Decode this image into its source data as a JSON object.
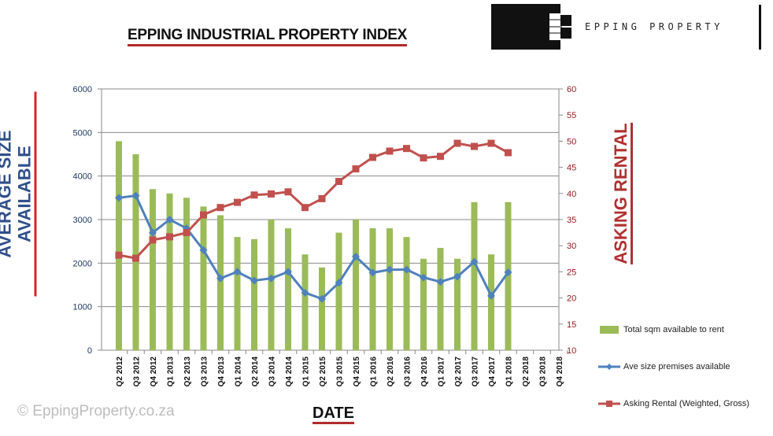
{
  "header": {
    "title": "EPPING INDUSTRIAL PROPERTY INDEX",
    "brand": "EPPING PROPERTY"
  },
  "watermark": "© EppingProperty.co.za",
  "colors": {
    "bars": "#9bbb59",
    "ave_size": "#4f81bd",
    "rental": "#c0504d",
    "left_axis_text": "#1f3864",
    "right_axis_text": "#8b1a1a"
  },
  "chart_data": {
    "type": "bar+line",
    "title": "EPPING INDUSTRIAL PROPERTY INDEX",
    "xlabel": "DATE",
    "ylabel": "AVERAGE  SIZE AVAILABLE",
    "y2label": "ASKING RENTAL",
    "ylim": [
      0,
      6000
    ],
    "y2lim": [
      10,
      60
    ],
    "yticks": [
      "0",
      "1000",
      "2000",
      "3000",
      "4000",
      "5000",
      "6000"
    ],
    "y2ticks": [
      "10",
      "15",
      "20",
      "25",
      "30",
      "35",
      "40",
      "45",
      "50",
      "55",
      "60"
    ],
    "grid": true,
    "legend_position": "right",
    "categories": [
      "Q2 2012",
      "Q3 2012",
      "Q4 2012",
      "Q1 2013",
      "Q2 2013",
      "Q3 2013",
      "Q4 2013",
      "Q1 2014",
      "Q2 2014",
      "Q3 2014",
      "Q4 2014",
      "Q1 2015",
      "Q2 2015",
      "Q3 2015",
      "Q4 2015",
      "Q1 2016",
      "Q2 2016",
      "Q3 2016",
      "Q4 2016",
      "Q1 2017",
      "Q2 2017",
      "Q3 2017",
      "Q4 2017",
      "Q1 2018",
      "Q2 2018",
      "Q3 2018",
      "Q4 2018"
    ],
    "series": [
      {
        "name": "Total sqm available to rent",
        "type": "bar",
        "axis": "left",
        "values": [
          4800,
          4500,
          3700,
          3600,
          3500,
          3300,
          3100,
          2600,
          2550,
          3000,
          2800,
          2200,
          1900,
          2700,
          3000,
          2800,
          2800,
          2600,
          2100,
          2350,
          2100,
          3400,
          2200,
          3400,
          null,
          null,
          null
        ]
      },
      {
        "name": "Ave size premises available",
        "type": "line",
        "axis": "left",
        "values": [
          3500,
          3550,
          2700,
          3000,
          2800,
          2300,
          1650,
          1800,
          1600,
          1650,
          1800,
          1320,
          1180,
          1550,
          2150,
          1780,
          1850,
          1850,
          1670,
          1570,
          1690,
          2030,
          1250,
          1790,
          null,
          null,
          null
        ]
      },
      {
        "name": "Asking Rental (Weighted, Gross)",
        "type": "line",
        "axis": "right",
        "values": [
          28.2,
          27.6,
          31.1,
          31.7,
          32.5,
          35.9,
          37.3,
          38.3,
          39.7,
          39.9,
          40.3,
          37.3,
          39.0,
          42.3,
          44.7,
          46.9,
          48.1,
          48.6,
          46.8,
          47.1,
          49.6,
          49.0,
          49.6,
          47.8,
          null,
          null,
          null
        ]
      }
    ]
  }
}
